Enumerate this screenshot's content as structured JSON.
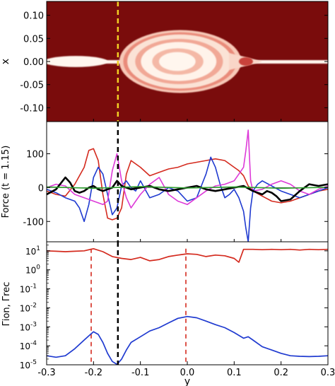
{
  "chart_data": [
    {
      "type": "heatmap",
      "ylabel": "x",
      "xlim": [
        -0.3,
        0.3
      ],
      "ylim": [
        -0.13,
        0.13
      ],
      "yticks": [
        "0.10",
        "0.05",
        "0.00",
        "-0.05",
        "-0.10"
      ],
      "ytick_values": [
        0.1,
        0.05,
        0.0,
        -0.05,
        -0.1
      ],
      "background_color": "#7a0c0c",
      "bright_color": "#fff6ee",
      "marker_line": {
        "y": -0.148,
        "color": "#f2d024",
        "style": "dashed"
      },
      "structures": [
        {
          "name": "sheet",
          "y_from": -0.3,
          "y_to": 0.3,
          "x_half_width": 0.003
        },
        {
          "name": "left-bulge",
          "y_center": -0.238,
          "y_half": 0.068,
          "x_half": 0.012
        },
        {
          "name": "central-island",
          "y_center": -0.015,
          "y_half": 0.13,
          "x_half": 0.068
        }
      ]
    },
    {
      "type": "line",
      "ylabel": "Force (t = 1.15)",
      "xlim": [
        -0.3,
        0.3
      ],
      "ylim": [
        -160,
        195
      ],
      "yticks": [
        "100",
        "0",
        "-100"
      ],
      "ytick_values": [
        100,
        0,
        -100
      ],
      "marker_line": {
        "y": -0.148,
        "color": "#000000",
        "style": "dashed"
      },
      "series": [
        {
          "color": "#d42a1e",
          "x": [
            -0.3,
            -0.28,
            -0.26,
            -0.24,
            -0.22,
            -0.21,
            -0.2,
            -0.19,
            -0.18,
            -0.17,
            -0.16,
            -0.15,
            -0.14,
            -0.13,
            -0.12,
            -0.1,
            -0.08,
            -0.06,
            -0.04,
            -0.02,
            0.0,
            0.02,
            0.04,
            0.06,
            0.08,
            0.1,
            0.11,
            0.12,
            0.125,
            0.13,
            0.14,
            0.16,
            0.18,
            0.2,
            0.22,
            0.24,
            0.26,
            0.28,
            0.3
          ],
          "y": [
            -10,
            -20,
            -25,
            10,
            60,
            110,
            115,
            80,
            -20,
            -90,
            -95,
            -90,
            -60,
            40,
            80,
            60,
            35,
            45,
            55,
            60,
            70,
            75,
            80,
            85,
            80,
            60,
            50,
            35,
            20,
            5,
            -10,
            -25,
            -40,
            -45,
            -40,
            -30,
            -20,
            -10,
            -5
          ]
        },
        {
          "color": "#1f3ad0",
          "x": [
            -0.3,
            -0.28,
            -0.26,
            -0.24,
            -0.23,
            -0.22,
            -0.21,
            -0.2,
            -0.19,
            -0.18,
            -0.17,
            -0.16,
            -0.15,
            -0.14,
            -0.13,
            -0.12,
            -0.11,
            -0.1,
            -0.08,
            -0.06,
            -0.04,
            -0.02,
            0.0,
            0.02,
            0.04,
            0.05,
            0.06,
            0.07,
            0.08,
            0.09,
            0.1,
            0.11,
            0.12,
            0.125,
            0.13,
            0.135,
            0.14,
            0.15,
            0.16,
            0.18,
            0.2,
            0.22,
            0.24,
            0.26,
            0.28,
            0.3
          ],
          "y": [
            -5,
            -15,
            -30,
            -40,
            -60,
            -100,
            -50,
            30,
            60,
            40,
            -20,
            -80,
            -60,
            5,
            20,
            0,
            -10,
            20,
            -30,
            -20,
            0,
            -10,
            -40,
            -30,
            40,
            90,
            60,
            10,
            -30,
            -20,
            -5,
            -30,
            -70,
            -120,
            -160,
            -60,
            -10,
            10,
            20,
            5,
            -10,
            -20,
            -30,
            -20,
            -10,
            0
          ]
        },
        {
          "color": "#dd3ad8",
          "x": [
            -0.3,
            -0.28,
            -0.26,
            -0.24,
            -0.22,
            -0.2,
            -0.18,
            -0.17,
            -0.16,
            -0.15,
            -0.14,
            -0.13,
            -0.12,
            -0.11,
            -0.1,
            -0.08,
            -0.06,
            -0.04,
            -0.02,
            0.0,
            0.02,
            0.04,
            0.06,
            0.08,
            0.1,
            0.11,
            0.12,
            0.125,
            0.13,
            0.135,
            0.14,
            0.16,
            0.18,
            0.2,
            0.22,
            0.24,
            0.26,
            0.28,
            0.3
          ],
          "y": [
            0,
            10,
            5,
            -20,
            -30,
            -40,
            -50,
            -40,
            50,
            100,
            20,
            -30,
            -60,
            -40,
            -20,
            10,
            30,
            -20,
            -40,
            -50,
            -30,
            -10,
            5,
            10,
            20,
            40,
            60,
            110,
            170,
            20,
            -10,
            -5,
            10,
            20,
            10,
            -10,
            -20,
            -5,
            5
          ]
        },
        {
          "color": "#000000",
          "x": [
            -0.3,
            -0.28,
            -0.26,
            -0.25,
            -0.24,
            -0.23,
            -0.22,
            -0.21,
            -0.2,
            -0.19,
            -0.18,
            -0.17,
            -0.16,
            -0.15,
            -0.14,
            -0.12,
            -0.1,
            -0.08,
            -0.06,
            -0.04,
            -0.02,
            0.0,
            0.02,
            0.04,
            0.06,
            0.08,
            0.1,
            0.12,
            0.14,
            0.16,
            0.17,
            0.18,
            0.19,
            0.2,
            0.22,
            0.24,
            0.26,
            0.28,
            0.3
          ],
          "y": [
            -20,
            -5,
            30,
            15,
            -10,
            -15,
            -10,
            0,
            5,
            -5,
            -10,
            -5,
            0,
            20,
            5,
            -5,
            0,
            5,
            -5,
            -10,
            -5,
            0,
            5,
            -5,
            -10,
            -5,
            0,
            5,
            -10,
            -20,
            -10,
            -15,
            -25,
            -40,
            -35,
            -10,
            10,
            5,
            10
          ]
        },
        {
          "color": "#2e9e2e",
          "x": [
            -0.3,
            -0.2,
            -0.1,
            0.0,
            0.1,
            0.2,
            0.3
          ],
          "y": [
            2,
            -2,
            3,
            -1,
            2,
            -2,
            1
          ]
        }
      ]
    },
    {
      "type": "line",
      "ylabel": "Γion, Γrec",
      "ylog": true,
      "xlim": [
        -0.3,
        0.3
      ],
      "ylim": [
        1e-05,
        30
      ],
      "yticks": [
        {
          "base": "10",
          "exp": "1",
          "value": 10
        },
        {
          "base": "10",
          "exp": "0",
          "value": 1
        },
        {
          "base": "10",
          "exp": "-1",
          "value": 0.1
        },
        {
          "base": "10",
          "exp": "-2",
          "value": 0.01
        },
        {
          "base": "10",
          "exp": "-3",
          "value": 0.001
        },
        {
          "base": "10",
          "exp": "-4",
          "value": 0.0001
        },
        {
          "base": "10",
          "exp": "-5",
          "value": 1e-05
        }
      ],
      "xticks": [
        "-0.3",
        "-0.2",
        "-0.1",
        "0.0",
        "0.1",
        "0.2",
        "0.3"
      ],
      "xtick_values": [
        -0.3,
        -0.2,
        -0.1,
        0.0,
        0.1,
        0.2,
        0.3
      ],
      "xlabel": "y",
      "marker_line": {
        "y": -0.148,
        "color": "#000000",
        "style": "dashed"
      },
      "red_markers": [
        -0.205,
        -0.003
      ],
      "series": [
        {
          "color": "#d42a1e",
          "x": [
            -0.3,
            -0.28,
            -0.26,
            -0.24,
            -0.22,
            -0.2,
            -0.18,
            -0.16,
            -0.14,
            -0.12,
            -0.1,
            -0.08,
            -0.06,
            -0.04,
            -0.02,
            0.0,
            0.02,
            0.04,
            0.06,
            0.08,
            0.1,
            0.11,
            0.12,
            0.14,
            0.16,
            0.18,
            0.2,
            0.22,
            0.24,
            0.26,
            0.28,
            0.3
          ],
          "y": [
            10,
            9.5,
            9,
            9.5,
            10,
            13,
            9,
            5,
            4,
            3.5,
            4.5,
            3,
            3.5,
            5,
            6,
            7,
            6.5,
            5,
            6,
            5.5,
            4,
            2.5,
            12,
            12,
            11.5,
            12,
            11.5,
            12,
            11,
            12,
            11.5,
            12
          ]
        },
        {
          "color": "#1f3ad0",
          "x": [
            -0.3,
            -0.28,
            -0.26,
            -0.24,
            -0.22,
            -0.2,
            -0.19,
            -0.18,
            -0.17,
            -0.16,
            -0.15,
            -0.14,
            -0.13,
            -0.12,
            -0.1,
            -0.08,
            -0.06,
            -0.04,
            -0.02,
            0.0,
            0.02,
            0.04,
            0.06,
            0.08,
            0.1,
            0.12,
            0.13,
            0.14,
            0.16,
            0.18,
            0.2,
            0.22,
            0.24,
            0.26,
            0.28,
            0.3
          ],
          "y": [
            3e-05,
            2.5e-05,
            3e-05,
            7e-05,
            0.0002,
            0.00055,
            0.0004,
            0.00015,
            4e-05,
            1.5e-05,
            1.05e-05,
            2e-05,
            6e-05,
            0.00015,
            0.0003,
            0.0006,
            0.0009,
            0.0016,
            0.0028,
            0.0035,
            0.003,
            0.002,
            0.0013,
            0.0009,
            0.0005,
            0.00025,
            0.0003,
            0.0002,
            9e-05,
            6e-05,
            4e-05,
            3e-05,
            2.8e-05,
            2.7e-05,
            2.8e-05,
            3e-05
          ]
        }
      ]
    }
  ]
}
